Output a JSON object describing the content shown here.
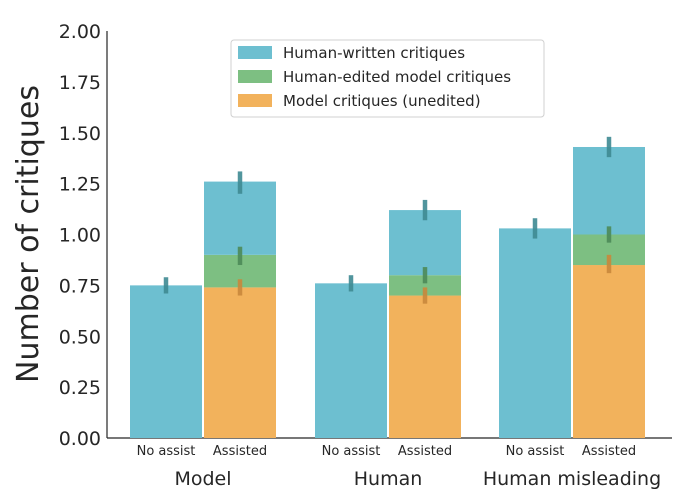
{
  "chart_data": {
    "type": "bar",
    "stacked": true,
    "title": "",
    "xlabel": "",
    "ylabel": "Number of critiques",
    "ylim": [
      0,
      2.0
    ],
    "yticks": [
      "0.00",
      "0.25",
      "0.50",
      "0.75",
      "1.00",
      "1.25",
      "1.50",
      "1.75",
      "2.00"
    ],
    "groups": [
      "Model",
      "Human",
      "Human misleading"
    ],
    "conditions": [
      "No assist",
      "Assisted"
    ],
    "series": [
      {
        "name": "Human-written critiques",
        "color": "#6dbfd0",
        "values": [
          [
            0.75,
            0.36
          ],
          [
            0.76,
            0.32
          ],
          [
            1.03,
            0.43
          ]
        ]
      },
      {
        "name": "Human-edited model critiques",
        "color": "#7dbf82",
        "values": [
          [
            0.0,
            0.16
          ],
          [
            0.0,
            0.1
          ],
          [
            0.0,
            0.15
          ]
        ]
      },
      {
        "name": "Model critiques (unedited)",
        "color": "#f2b25c",
        "values": [
          [
            0.0,
            0.74
          ],
          [
            0.0,
            0.7
          ],
          [
            0.0,
            0.85
          ]
        ]
      }
    ],
    "totals": [
      [
        0.75,
        1.26
      ],
      [
        0.76,
        1.12
      ],
      [
        1.03,
        1.43
      ]
    ],
    "error_bars": [
      {
        "group": "Model",
        "condition": "No assist",
        "series": "Human-written critiques",
        "low": 0.71,
        "high": 0.79
      },
      {
        "group": "Model",
        "condition": "Assisted",
        "series": "Human-written critiques",
        "low": 1.2,
        "high": 1.31
      },
      {
        "group": "Model",
        "condition": "Assisted",
        "series": "Human-edited model critiques",
        "low": 0.85,
        "high": 0.94
      },
      {
        "group": "Model",
        "condition": "Assisted",
        "series": "Model critiques (unedited)",
        "low": 0.7,
        "high": 0.78
      },
      {
        "group": "Human",
        "condition": "No assist",
        "series": "Human-written critiques",
        "low": 0.72,
        "high": 0.8
      },
      {
        "group": "Human",
        "condition": "Assisted",
        "series": "Human-written critiques",
        "low": 1.07,
        "high": 1.17
      },
      {
        "group": "Human",
        "condition": "Assisted",
        "series": "Human-edited model critiques",
        "low": 0.76,
        "high": 0.84
      },
      {
        "group": "Human",
        "condition": "Assisted",
        "series": "Model critiques (unedited)",
        "low": 0.66,
        "high": 0.74
      },
      {
        "group": "Human misleading",
        "condition": "No assist",
        "series": "Human-written critiques",
        "low": 0.98,
        "high": 1.08
      },
      {
        "group": "Human misleading",
        "condition": "Assisted",
        "series": "Human-written critiques",
        "low": 1.38,
        "high": 1.48
      },
      {
        "group": "Human misleading",
        "condition": "Assisted",
        "series": "Human-edited model critiques",
        "low": 0.96,
        "high": 1.04
      },
      {
        "group": "Human misleading",
        "condition": "Assisted",
        "series": "Model critiques (unedited)",
        "low": 0.81,
        "high": 0.9
      }
    ],
    "legend_position": "top-center",
    "grid": false
  }
}
